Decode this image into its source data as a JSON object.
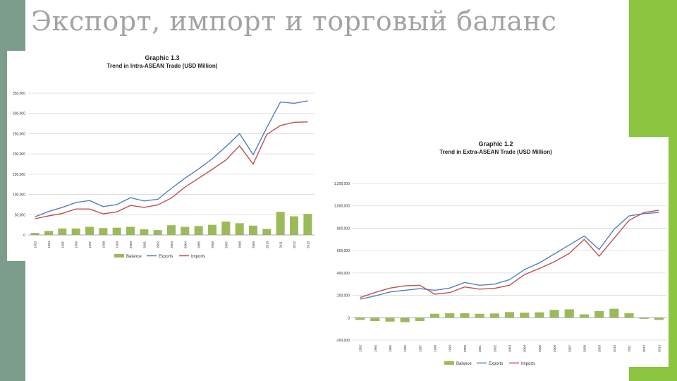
{
  "slide": {
    "title": "Экспорт, импорт и торговый баланс",
    "colors": {
      "left_bar": "#7c9c8c",
      "right_bar": "#8cc540",
      "title": "#a3a3a3"
    }
  },
  "chart_data": [
    {
      "type": "bar+line",
      "title": "Graphic 1.3",
      "subtitle": "Trend in Intra-ASEAN Trade (USD Million)",
      "categories": [
        "1993",
        "1994",
        "1995",
        "1996",
        "1997",
        "1998",
        "1999",
        "2000",
        "2001",
        "2002",
        "2003",
        "2004",
        "2005",
        "2006",
        "2007",
        "2008",
        "2009",
        "2010",
        "2011",
        "2012",
        "2013"
      ],
      "yticks": [
        0,
        50000,
        100000,
        150000,
        200000,
        250000,
        300000,
        350000
      ],
      "ytick_labels": [
        "0",
        "50,000",
        "100,000",
        "150,000",
        "200,000",
        "250,000",
        "300,000",
        "350,000"
      ],
      "ylim": [
        0,
        350000
      ],
      "series": [
        {
          "name": "Balance",
          "kind": "bar",
          "color": "#9bbb59",
          "values": [
            5000,
            10000,
            16000,
            16000,
            20000,
            17000,
            18000,
            20000,
            14000,
            12000,
            24000,
            20000,
            22000,
            25000,
            33000,
            29000,
            23000,
            15000,
            57000,
            46000,
            52000
          ]
        },
        {
          "name": "Exports",
          "kind": "line",
          "color": "#4f81bd",
          "values": [
            45000,
            58000,
            68000,
            80000,
            85000,
            70000,
            75000,
            92000,
            84000,
            88000,
            115000,
            140000,
            163000,
            188000,
            218000,
            250000,
            198000,
            265000,
            328000,
            325000,
            331000
          ]
        },
        {
          "name": "Imports",
          "kind": "line",
          "color": "#c0504d",
          "values": [
            40000,
            47000,
            53000,
            64000,
            64000,
            52000,
            57000,
            73000,
            68000,
            74000,
            91000,
            118000,
            140000,
            162000,
            185000,
            220000,
            175000,
            248000,
            270000,
            278000,
            279000
          ]
        }
      ],
      "legend": "bottom"
    },
    {
      "type": "bar+line",
      "title": "Graphic 1.2",
      "subtitle": "Trend in Extra-ASEAN Trade (USD Million)",
      "categories": [
        "1993",
        "1994",
        "1995",
        "1996",
        "1997",
        "1998",
        "1999",
        "2000",
        "2001",
        "2002",
        "2003",
        "2004",
        "2005",
        "2006",
        "2007",
        "2008",
        "2009",
        "2010",
        "2011",
        "2012",
        "2013"
      ],
      "yticks": [
        -200000,
        0,
        200000,
        400000,
        600000,
        800000,
        1000000,
        1200000
      ],
      "ytick_labels": [
        "-200,000",
        "0",
        "200,000",
        "400,000",
        "600,000",
        "800,000",
        "1,000,000",
        "1,200,000"
      ],
      "ylim": [
        -200000,
        1200000
      ],
      "series": [
        {
          "name": "Balance",
          "kind": "bar",
          "color": "#9bbb59",
          "values": [
            -20000,
            -30000,
            -35000,
            -40000,
            -30000,
            35000,
            40000,
            40000,
            35000,
            38000,
            50000,
            45000,
            48000,
            70000,
            75000,
            30000,
            60000,
            80000,
            40000,
            -10000,
            -20000
          ]
        },
        {
          "name": "Exports",
          "kind": "line",
          "color": "#4f81bd",
          "values": [
            165000,
            195000,
            230000,
            245000,
            260000,
            245000,
            265000,
            315000,
            290000,
            300000,
            340000,
            430000,
            490000,
            570000,
            650000,
            730000,
            610000,
            790000,
            910000,
            930000,
            940000
          ]
        },
        {
          "name": "Imports",
          "kind": "line",
          "color": "#c0504d",
          "values": [
            180000,
            225000,
            265000,
            285000,
            290000,
            210000,
            225000,
            275000,
            255000,
            262000,
            290000,
            385000,
            440000,
            500000,
            575000,
            700000,
            550000,
            710000,
            870000,
            940000,
            960000
          ]
        }
      ],
      "legend": "bottom"
    }
  ]
}
